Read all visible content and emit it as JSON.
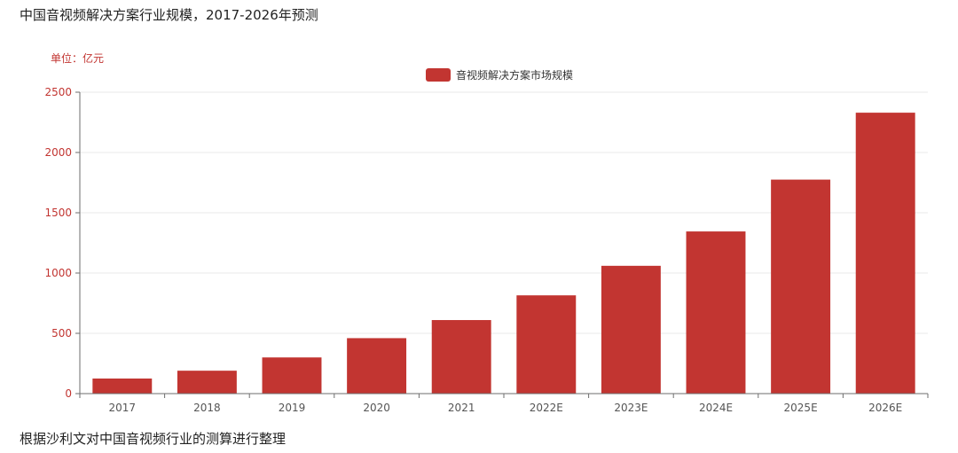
{
  "title": "中国音视频解决方案行业规模，2017-2026年预测",
  "source": "根据沙利文对中国音视频行业的测算进行整理",
  "colors": {
    "bar": "#c23531",
    "axis_label": "#c23531",
    "x_label": "#555555",
    "grid": "#e8e8e8",
    "axis_line": "#6e6e6e"
  },
  "chart_data": {
    "type": "bar",
    "unit_label": "单位：亿元",
    "categories": [
      "2017",
      "2018",
      "2019",
      "2020",
      "2021",
      "2022E",
      "2023E",
      "2024E",
      "2025E",
      "2026E"
    ],
    "series": [
      {
        "name": "音视频解决方案市场规模",
        "values": [
          125,
          190,
          300,
          460,
          610,
          815,
          1060,
          1345,
          1775,
          2330
        ]
      }
    ],
    "ylim": [
      0,
      2500
    ],
    "yticks": [
      0,
      500,
      1000,
      1500,
      2000,
      2500
    ],
    "grid": true,
    "legend_position": "top-center"
  }
}
